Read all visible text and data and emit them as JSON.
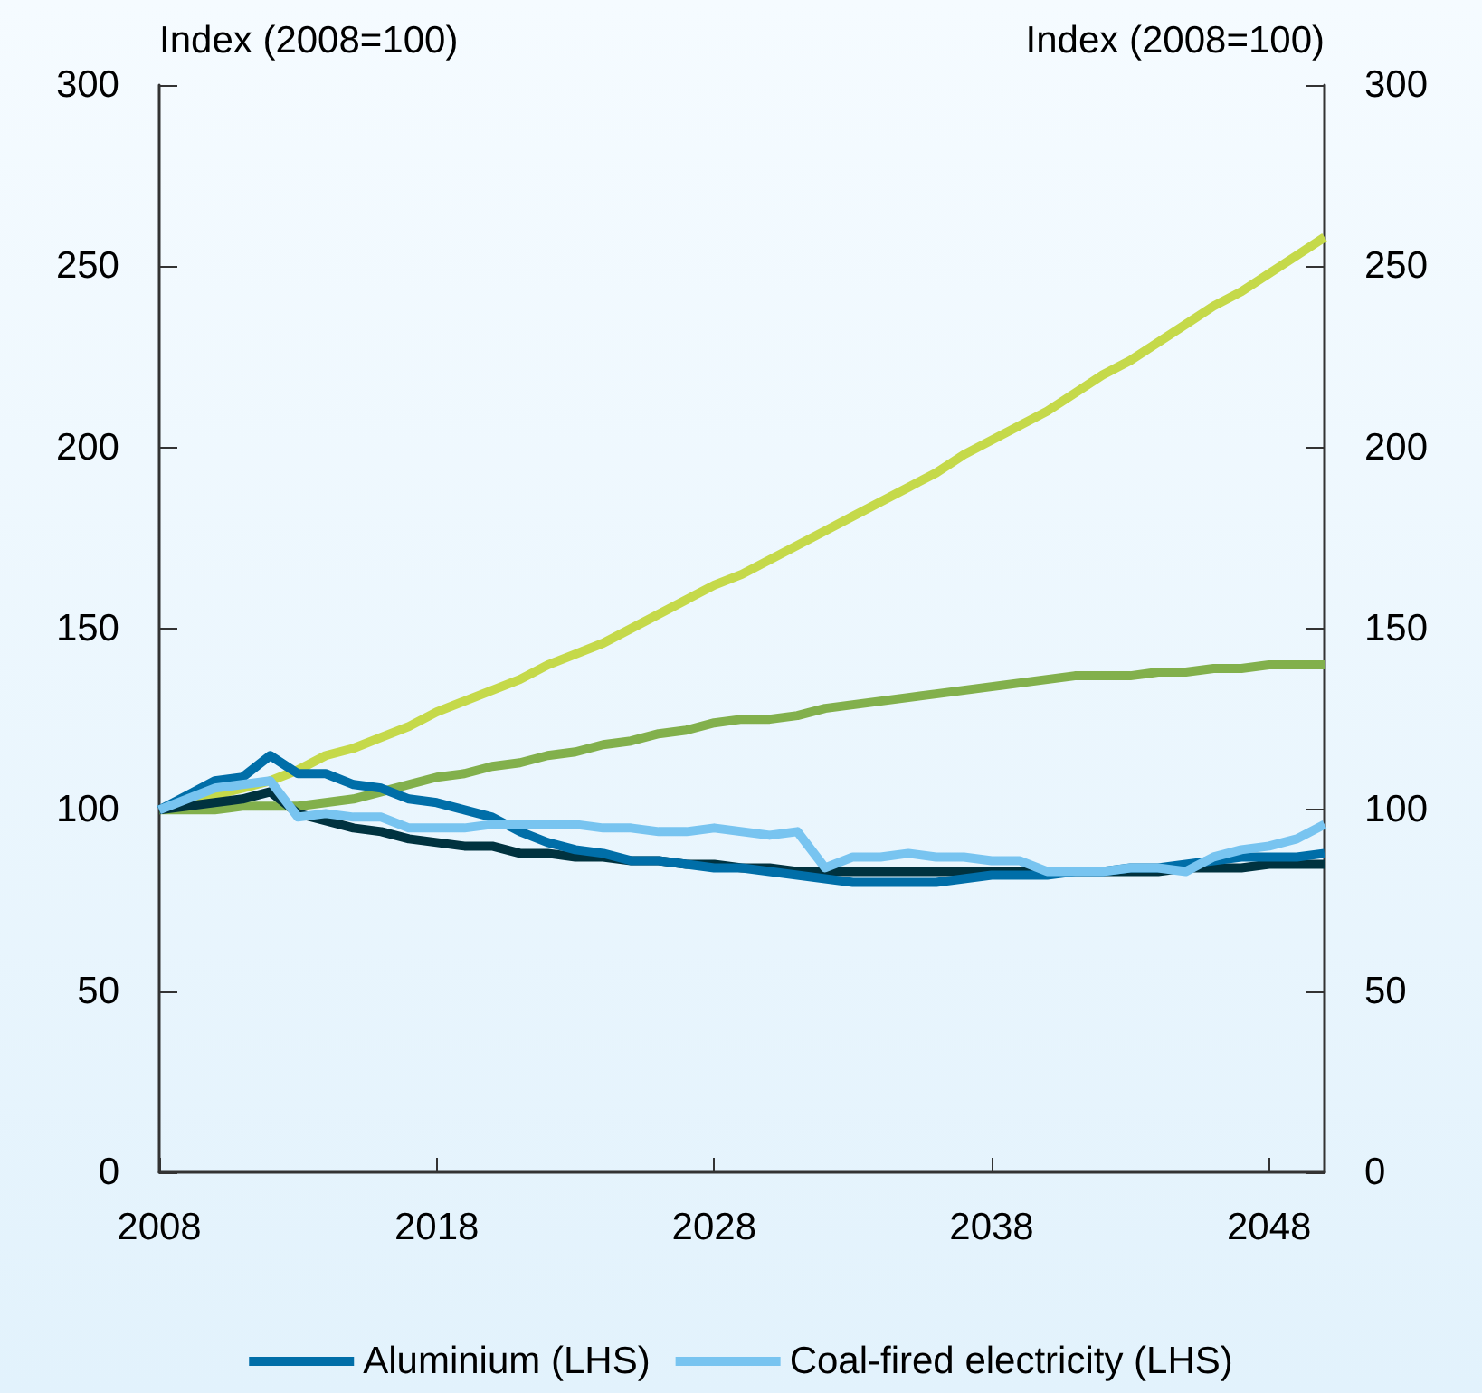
{
  "chart_data": {
    "type": "line",
    "ylabel": "Index (2008=100)",
    "y2label": "Index (2008=100)",
    "x": [
      2008,
      2009,
      2010,
      2011,
      2012,
      2013,
      2014,
      2015,
      2016,
      2017,
      2018,
      2019,
      2020,
      2021,
      2022,
      2023,
      2024,
      2025,
      2026,
      2027,
      2028,
      2029,
      2030,
      2031,
      2032,
      2033,
      2034,
      2035,
      2036,
      2037,
      2038,
      2039,
      2040,
      2041,
      2042,
      2043,
      2044,
      2045,
      2046,
      2047,
      2048,
      2049,
      2050
    ],
    "xlim": [
      2008,
      2050
    ],
    "xticks": [
      2008,
      2018,
      2028,
      2038,
      2048
    ],
    "ylim": [
      0,
      300
    ],
    "yticks": [
      0,
      50,
      100,
      150,
      200,
      250,
      300
    ],
    "y2lim": [
      0,
      300
    ],
    "y2ticks": [
      0,
      50,
      100,
      150,
      200,
      250,
      300
    ],
    "series": [
      {
        "color": "#c5d94a",
        "values": [
          100,
          102,
          104,
          106,
          108,
          111,
          115,
          117,
          120,
          123,
          127,
          130,
          133,
          136,
          140,
          143,
          146,
          150,
          154,
          158,
          162,
          165,
          169,
          173,
          177,
          181,
          185,
          189,
          193,
          198,
          202,
          206,
          210,
          215,
          220,
          224,
          229,
          234,
          239,
          243,
          248,
          253,
          258
        ]
      },
      {
        "color": "#82b04c",
        "values": [
          100,
          100,
          100,
          101,
          101,
          101,
          102,
          103,
          105,
          107,
          109,
          110,
          112,
          113,
          115,
          116,
          118,
          119,
          121,
          122,
          124,
          125,
          125,
          126,
          128,
          129,
          130,
          131,
          132,
          133,
          134,
          135,
          136,
          137,
          137,
          137,
          138,
          138,
          139,
          139,
          140,
          140,
          140
        ]
      },
      {
        "color": "#00323f",
        "values": [
          100,
          101,
          102,
          103,
          105,
          99,
          97,
          95,
          94,
          92,
          91,
          90,
          90,
          88,
          88,
          87,
          87,
          86,
          86,
          85,
          85,
          84,
          84,
          83,
          83,
          83,
          83,
          83,
          83,
          83,
          83,
          83,
          83,
          83,
          83,
          83,
          83,
          84,
          84,
          84,
          85,
          85,
          85
        ]
      },
      {
        "name": "Aluminium (LHS)",
        "color": "#006ea8",
        "values": [
          100,
          104,
          108,
          109,
          115,
          110,
          110,
          107,
          106,
          103,
          102,
          100,
          98,
          94,
          91,
          89,
          88,
          86,
          86,
          85,
          84,
          84,
          83,
          82,
          81,
          80,
          80,
          80,
          80,
          81,
          82,
          82,
          82,
          83,
          83,
          84,
          84,
          85,
          86,
          87,
          87,
          87,
          88
        ]
      },
      {
        "name": "Coal-fired electricity (LHS)",
        "color": "#78c4f0",
        "values": [
          100,
          103,
          106,
          107,
          108,
          98,
          99,
          98,
          98,
          95,
          95,
          95,
          96,
          96,
          96,
          96,
          95,
          95,
          94,
          94,
          95,
          94,
          93,
          94,
          84,
          87,
          87,
          88,
          87,
          87,
          86,
          86,
          83,
          83,
          83,
          84,
          84,
          83,
          87,
          89,
          90,
          92,
          96
        ]
      }
    ],
    "legend": "bottom",
    "grid": false,
    "marker": "none",
    "line_style": "solid"
  }
}
